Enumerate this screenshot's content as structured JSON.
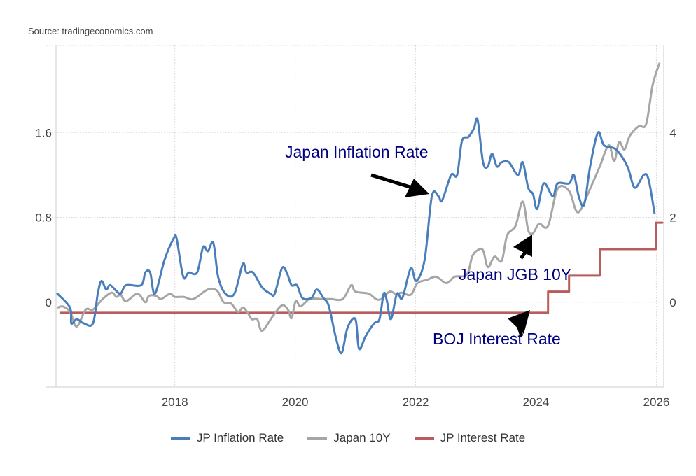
{
  "source": "Source: tradingeconomics.com",
  "chart_data": {
    "type": "line",
    "title": "",
    "xlim": [
      2016.05,
      2026.1
    ],
    "x_ticks": [
      2018,
      2020,
      2022,
      2024,
      2026
    ],
    "x_tick_labels": [
      "2018",
      "2020",
      "2022",
      "2024",
      "2026"
    ],
    "ylim_left": [
      -0.8,
      2.42
    ],
    "ylim_right": [
      -2,
      6.05
    ],
    "y_left_ticks": [
      0,
      0.8,
      1.6
    ],
    "y_left_tick_labels": [
      "0",
      "0.8",
      "1.6"
    ],
    "y_right_ticks": [
      0,
      2,
      4
    ],
    "y_right_tick_labels": [
      "0",
      "2",
      "4"
    ],
    "grid": true,
    "legend_position": "bottom",
    "series": [
      {
        "name": "JP Inflation Rate",
        "axis": "right",
        "color": "#4a7ebb",
        "x": [
          2016.05,
          2016.26,
          2016.28,
          2016.37,
          2016.49,
          2016.64,
          2016.72,
          2016.78,
          2016.86,
          2016.93,
          2017.09,
          2017.19,
          2017.44,
          2017.51,
          2017.59,
          2017.67,
          2017.83,
          2017.98,
          2018.03,
          2018.14,
          2018.23,
          2018.37,
          2018.47,
          2018.55,
          2018.64,
          2018.72,
          2018.84,
          2018.99,
          2019.13,
          2019.19,
          2019.3,
          2019.45,
          2019.59,
          2019.66,
          2019.78,
          2019.86,
          2019.94,
          2020.03,
          2020.12,
          2020.27,
          2020.36,
          2020.47,
          2020.56,
          2020.67,
          2020.77,
          2020.87,
          2021.0,
          2021.06,
          2021.17,
          2021.31,
          2021.4,
          2021.47,
          2021.52,
          2021.59,
          2021.69,
          2021.78,
          2021.92,
          2022.01,
          2022.15,
          2022.27,
          2022.38,
          2022.44,
          2022.59,
          2022.69,
          2022.77,
          2022.88,
          2022.97,
          2023.03,
          2023.12,
          2023.2,
          2023.27,
          2023.35,
          2023.43,
          2023.55,
          2023.7,
          2023.78,
          2023.87,
          2023.95,
          2024.02,
          2024.13,
          2024.28,
          2024.36,
          2024.55,
          2024.63,
          2024.71,
          2024.8,
          2024.9,
          2025.03,
          2025.13,
          2025.33,
          2025.52,
          2025.64,
          2025.79,
          2025.87,
          2025.97
        ],
        "values": [
          0.2,
          -0.13,
          -0.5,
          -0.4,
          -0.5,
          -0.5,
          0.2,
          0.5,
          0.3,
          0.4,
          0.2,
          0.4,
          0.4,
          0.7,
          0.7,
          0.2,
          1.0,
          1.5,
          1.5,
          0.6,
          0.7,
          0.7,
          1.3,
          1.2,
          1.4,
          0.6,
          0.2,
          0.2,
          0.9,
          0.7,
          0.7,
          0.35,
          0.2,
          0.2,
          0.8,
          0.7,
          0.4,
          0.4,
          0.1,
          0.1,
          0.3,
          0.1,
          -0.1,
          -0.8,
          -1.2,
          -0.6,
          -0.4,
          -1.1,
          -0.8,
          -0.5,
          -0.4,
          0.2,
          0.05,
          -0.4,
          0.2,
          0.1,
          0.8,
          0.5,
          1.0,
          2.5,
          2.5,
          2.4,
          3.0,
          3.0,
          3.8,
          3.9,
          4.1,
          4.3,
          3.3,
          3.2,
          3.5,
          3.2,
          3.3,
          3.3,
          3.0,
          3.3,
          2.7,
          2.55,
          2.2,
          2.8,
          2.5,
          2.8,
          2.8,
          3.0,
          2.5,
          2.3,
          3.2,
          4.0,
          3.7,
          3.6,
          3.2,
          2.7,
          3.0,
          2.9,
          2.1
        ]
      },
      {
        "name": "Japan 10Y",
        "axis": "left",
        "color": "#a6a6a6",
        "x": [
          2016.06,
          2016.14,
          2016.26,
          2016.37,
          2016.52,
          2016.64,
          2016.8,
          2016.95,
          2017.03,
          2017.1,
          2017.19,
          2017.38,
          2017.51,
          2017.57,
          2017.69,
          2017.77,
          2017.92,
          2018.0,
          2018.15,
          2018.31,
          2018.55,
          2018.7,
          2018.81,
          2018.93,
          2019.05,
          2019.13,
          2019.2,
          2019.28,
          2019.37,
          2019.45,
          2019.63,
          2019.78,
          2019.88,
          2019.94,
          2020.01,
          2020.09,
          2020.24,
          2020.44,
          2020.59,
          2020.79,
          2020.93,
          2021.0,
          2021.22,
          2021.34,
          2021.43,
          2021.57,
          2021.69,
          2021.76,
          2021.92,
          2022.03,
          2022.19,
          2022.34,
          2022.51,
          2022.65,
          2022.85,
          2022.94,
          2023.03,
          2023.12,
          2023.2,
          2023.31,
          2023.43,
          2023.52,
          2023.66,
          2023.78,
          2023.87,
          2023.95,
          2024.05,
          2024.2,
          2024.36,
          2024.55,
          2024.66,
          2024.74,
          2024.9,
          2025.06,
          2025.21,
          2025.3,
          2025.38,
          2025.47,
          2025.56,
          2025.71,
          2025.83,
          2025.94,
          2026.05
        ],
        "values": [
          -0.05,
          -0.04,
          -0.09,
          -0.23,
          -0.07,
          -0.07,
          0.03,
          0.09,
          0.05,
          0.07,
          0.01,
          0.08,
          0.0,
          0.06,
          0.06,
          0.03,
          0.08,
          0.05,
          0.05,
          0.03,
          0.12,
          0.11,
          0.0,
          -0.01,
          -0.09,
          -0.05,
          -0.09,
          -0.16,
          -0.16,
          -0.27,
          -0.13,
          -0.03,
          -0.07,
          -0.15,
          0.01,
          -0.04,
          0.03,
          0.03,
          0.03,
          0.03,
          0.16,
          0.1,
          0.08,
          0.03,
          0.03,
          0.1,
          0.07,
          0.09,
          0.07,
          0.18,
          0.21,
          0.24,
          0.18,
          0.24,
          0.26,
          0.43,
          0.49,
          0.49,
          0.33,
          0.43,
          0.39,
          0.63,
          0.72,
          0.95,
          0.68,
          0.65,
          0.74,
          0.72,
          1.07,
          1.05,
          0.87,
          0.87,
          1.07,
          1.28,
          1.48,
          1.33,
          1.51,
          1.44,
          1.57,
          1.66,
          1.68,
          2.05,
          2.25
        ]
      },
      {
        "name": "JP Interest Rate",
        "axis": "left",
        "color": "#b85c5c",
        "step": true,
        "x": [
          2016.1,
          2024.2,
          2024.55,
          2025.06,
          2025.99,
          2026.1
        ],
        "values": [
          -0.1,
          0.1,
          0.25,
          0.5,
          0.75,
          0.75
        ]
      }
    ],
    "annotations": [
      {
        "text": "Japan Inflation Rate"
      },
      {
        "text": "Japan JGB 10Y"
      },
      {
        "text": "BOJ Interest Rate"
      }
    ]
  }
}
